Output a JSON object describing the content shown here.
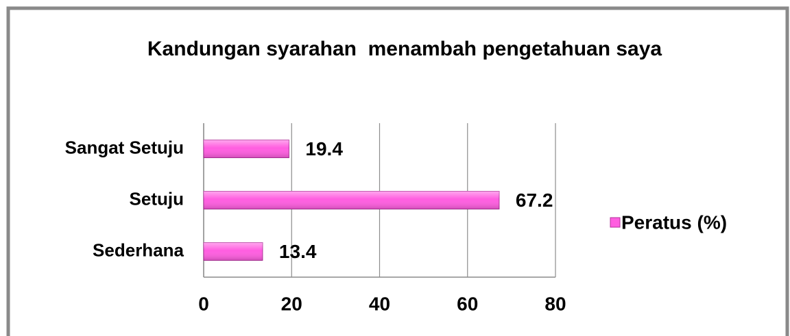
{
  "chart_data": {
    "type": "barh",
    "title": "Kandungan syarahan  menambah pengetahuan saya",
    "categories": [
      "Sangat Setuju",
      "Setuju",
      "Sederhana"
    ],
    "series": [
      {
        "name": "Peratus (%)",
        "color": "#ff5ee0",
        "values": [
          19.4,
          67.2,
          13.4
        ]
      }
    ],
    "xlim": [
      0,
      80
    ],
    "xticks": [
      0,
      20,
      40,
      60,
      80
    ],
    "grid": true,
    "legend": "right"
  }
}
